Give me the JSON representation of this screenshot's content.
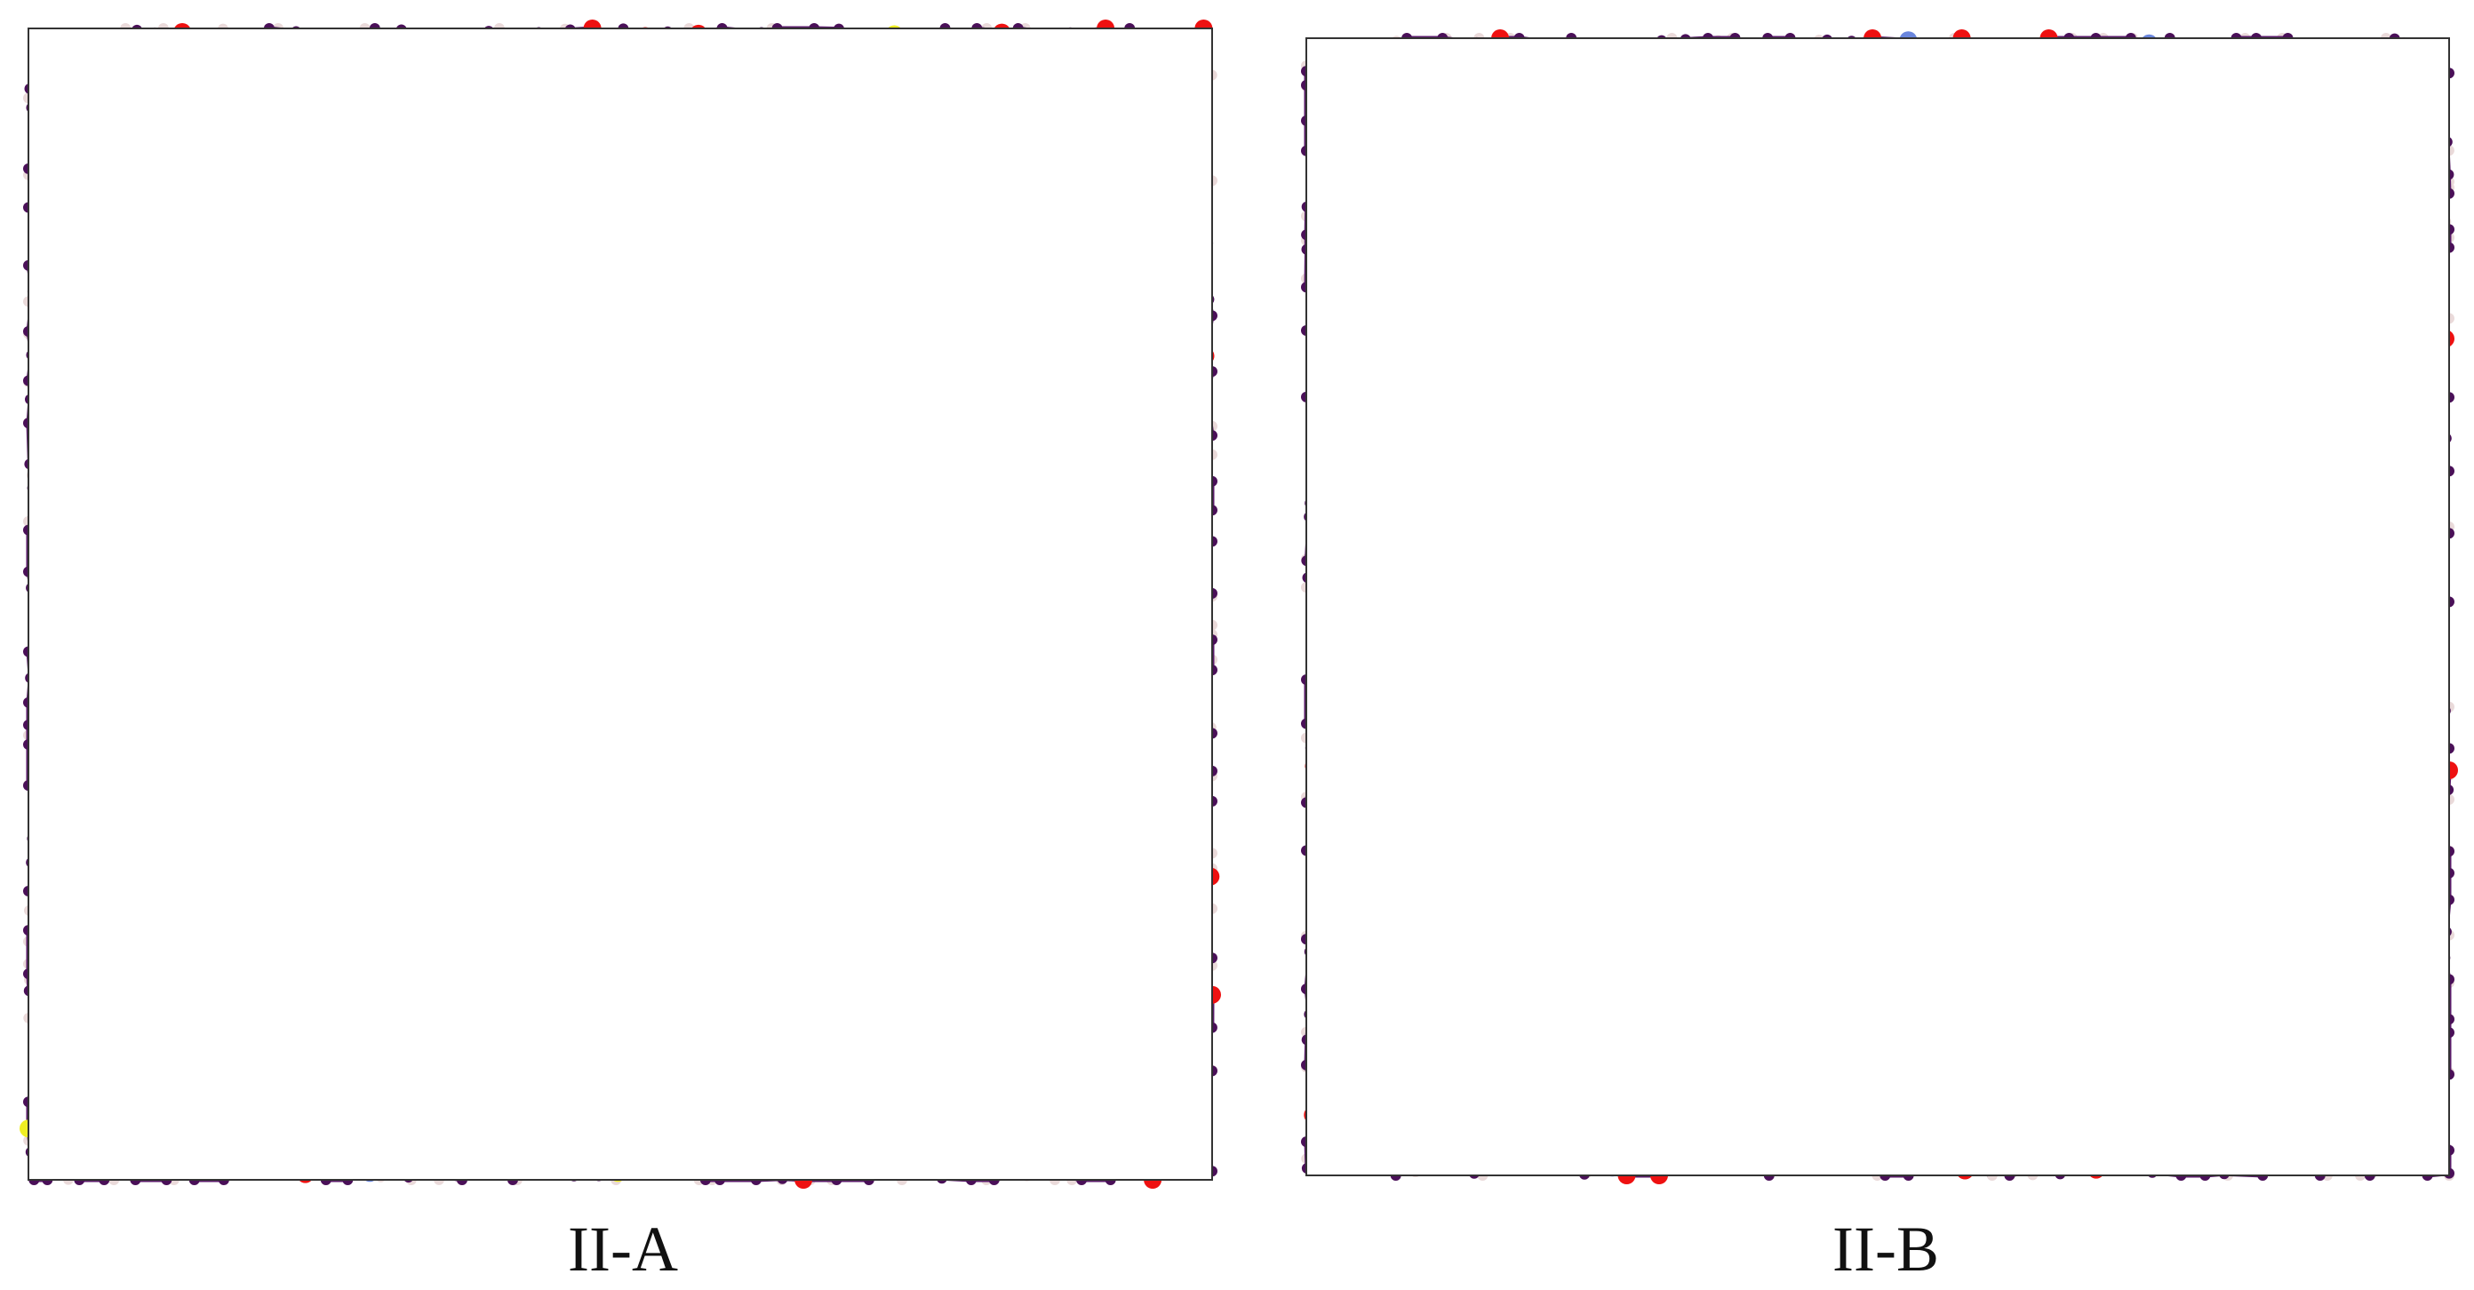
{
  "panels": [
    {
      "label": "II-A"
    },
    {
      "label": "II-B"
    }
  ]
}
